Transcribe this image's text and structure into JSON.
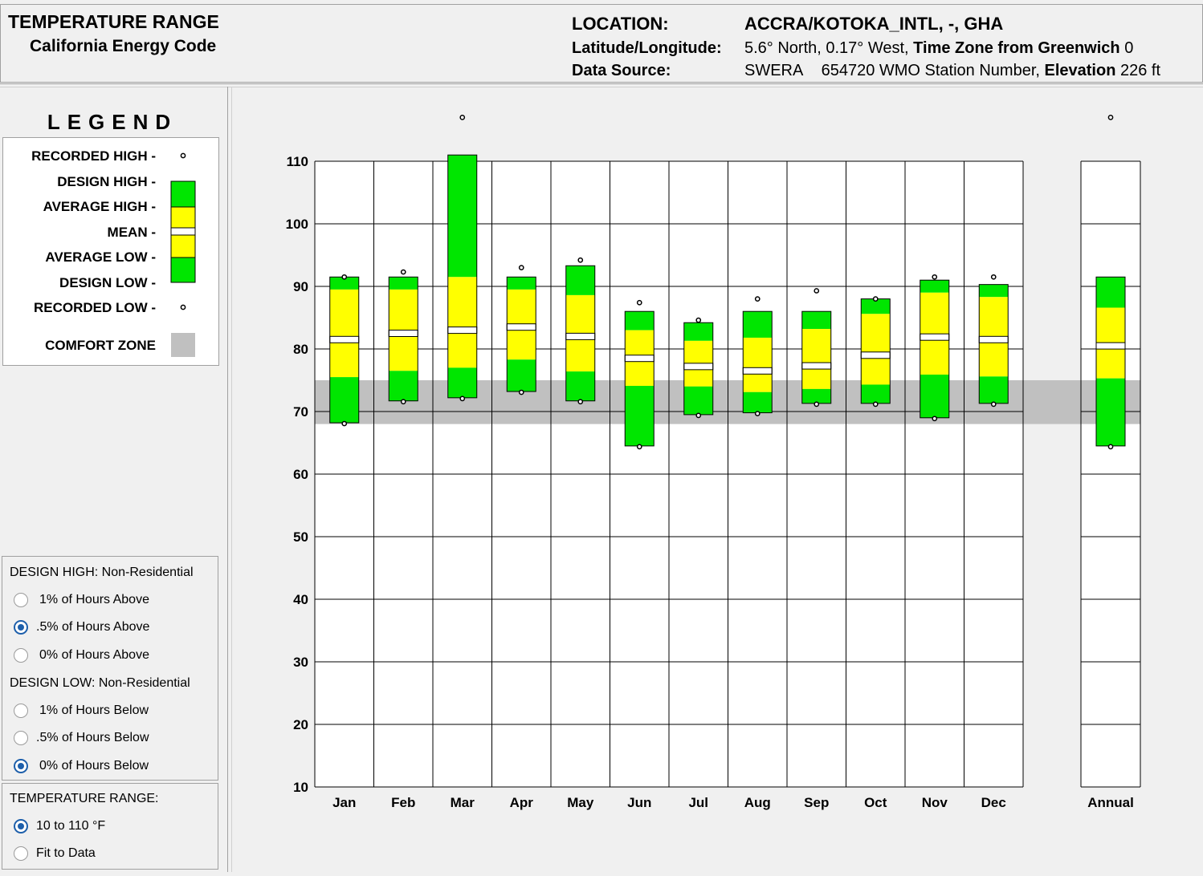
{
  "header": {
    "title": "TEMPERATURE RANGE",
    "subtitle": "California Energy Code",
    "location_label": "LOCATION:",
    "location_value": "ACCRA/KOTOKA_INTL, -, GHA",
    "latlon_label": "Latitude/Longitude:",
    "latlon_value": "5.6° North, 0.17° West,",
    "tz_label": "Time Zone from Greenwich",
    "tz_value": "0",
    "source_label": "Data Source:",
    "source_name": "SWERA",
    "station_text": "654720 WMO Station Number,",
    "elevation_label": "Elevation",
    "elevation_value": "226 ft"
  },
  "legend": {
    "title": "LEGEND",
    "items": [
      "RECORDED HIGH -",
      "DESIGN HIGH -",
      "AVERAGE HIGH -",
      "MEAN -",
      "AVERAGE LOW -",
      "DESIGN LOW -",
      "RECORDED LOW -"
    ],
    "comfort_label": "COMFORT ZONE"
  },
  "design_high": {
    "heading": "DESIGN HIGH:  Non-Residential",
    "options": [
      "1% of Hours Above",
      ".5% of Hours Above",
      "0% of Hours Above"
    ],
    "selected": 1
  },
  "design_low": {
    "heading": "DESIGN LOW:  Non-Residential",
    "options": [
      "1% of Hours Below",
      ".5% of Hours Below",
      "0% of Hours Below"
    ],
    "selected": 2
  },
  "temp_range": {
    "heading": "TEMPERATURE RANGE:",
    "options": [
      "10 to 110 °F",
      "Fit to Data"
    ],
    "selected": 0
  },
  "colors": {
    "design_band": "#00e600",
    "average_band": "#ffff00",
    "mean": "#ffffff",
    "comfort_zone": "#c0c0c0",
    "radio_selected": "#1d5fab"
  },
  "chart_data": {
    "type": "range-bar",
    "y_ticks": [
      10,
      20,
      30,
      40,
      50,
      60,
      70,
      80,
      90,
      100,
      110
    ],
    "ylim": [
      10,
      110
    ],
    "comfort_zone": [
      68,
      75
    ],
    "grid": true,
    "categories": [
      "Jan",
      "Feb",
      "Mar",
      "Apr",
      "May",
      "Jun",
      "Jul",
      "Aug",
      "Sep",
      "Oct",
      "Nov",
      "Dec",
      "Annual"
    ],
    "recorded_high": [
      91.5,
      92.3,
      117,
      93.0,
      94.2,
      87.4,
      84.6,
      88.0,
      89.3,
      88.0,
      91.5,
      91.5,
      117
    ],
    "design_high": [
      91.5,
      91.5,
      111,
      91.5,
      93.3,
      86.0,
      84.2,
      86.0,
      86.0,
      88.0,
      91.0,
      90.3,
      91.5
    ],
    "average_high": [
      89.5,
      89.5,
      91.5,
      89.5,
      88.6,
      83.0,
      81.3,
      81.8,
      83.2,
      85.6,
      89.0,
      88.3,
      86.6
    ],
    "mean": [
      81.5,
      82.5,
      83.0,
      83.5,
      82.0,
      78.5,
      77.2,
      76.5,
      77.3,
      79.0,
      81.9,
      81.5,
      80.5
    ],
    "average_low": [
      75.5,
      76.5,
      77.0,
      78.3,
      76.4,
      74.1,
      74.0,
      73.1,
      73.6,
      74.3,
      75.9,
      75.6,
      75.3
    ],
    "design_low": [
      68.2,
      71.7,
      72.2,
      73.2,
      71.7,
      64.5,
      69.5,
      69.8,
      71.3,
      71.3,
      69.0,
      71.3,
      64.5
    ],
    "recorded_low": [
      68.2,
      71.7,
      72.2,
      73.2,
      71.7,
      64.5,
      69.5,
      69.8,
      71.3,
      71.3,
      69.0,
      71.3,
      64.5
    ]
  }
}
